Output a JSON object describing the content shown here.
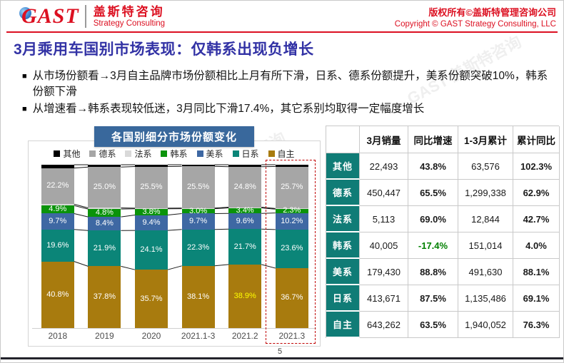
{
  "header": {
    "logo_text": "GAST",
    "logo_cn": "盖斯特咨询",
    "logo_en": "Strategy Consulting",
    "copyright_cn": "版权所有©盖斯特管理咨询公司",
    "copyright_en": "Copyright © GAST Strategy Consulting, LLC"
  },
  "title": "3月乘用车国别市场表现：仅韩系出现负增长",
  "bullets": [
    "从市场份额看→3月自主品牌市场份额相比上月有所下滑，日系、德系份额提升，美系份额突破10%，韩系份额下滑",
    "从增速看→韩系表现较低迷，3月同比下滑17.4%，其它系别均取得一定幅度增长"
  ],
  "chart_data": {
    "type": "bar",
    "stacked": true,
    "title": "各国别细分市场份额变化",
    "unit": "%",
    "ylim": [
      0,
      100
    ],
    "grid": false,
    "legend_position": "top",
    "categories": [
      "2018",
      "2019",
      "2020",
      "2021.1-3",
      "2021.2",
      "2021.3"
    ],
    "series": [
      {
        "name": "自主",
        "color": "#A87B0E",
        "values": [
          40.8,
          37.8,
          35.7,
          38.1,
          38.9,
          36.7
        ]
      },
      {
        "name": "日系",
        "color": "#0B8578",
        "values": [
          19.6,
          21.9,
          24.1,
          22.3,
          21.7,
          23.6
        ]
      },
      {
        "name": "美系",
        "color": "#3E68A3",
        "values": [
          9.7,
          8.4,
          9.4,
          9.7,
          9.6,
          10.2
        ]
      },
      {
        "name": "韩系",
        "color": "#0A930A",
        "values": [
          4.9,
          4.8,
          3.8,
          3.0,
          3.4,
          2.3
        ]
      },
      {
        "name": "法系",
        "color": "#D9D9D9",
        "values": [
          0.8,
          0.7,
          0.4,
          0.4,
          0.4,
          0.4
        ],
        "labels_hidden": true
      },
      {
        "name": "德系",
        "color": "#A6A6A6",
        "values": [
          22.2,
          25.0,
          25.5,
          25.5,
          24.8,
          25.7
        ]
      },
      {
        "name": "其他",
        "color": "#000000",
        "values": [
          2.0,
          1.4,
          1.1,
          1.0,
          1.2,
          1.1
        ],
        "labels_hidden": true
      }
    ],
    "legend_order": [
      "其他",
      "德系",
      "法系",
      "韩系",
      "美系",
      "日系",
      "自主"
    ],
    "highlight_category_index": 5,
    "highlight_label": {
      "category_index": 4,
      "series": "自主",
      "color": "#FFFF00"
    }
  },
  "table": {
    "columns": [
      "",
      "3月销量",
      "同比增速",
      "1-3月累计",
      "累计同比"
    ],
    "rows": [
      {
        "name": "其他",
        "sales": "22,493",
        "yoy": "43.8%",
        "cum": "63,576",
        "cum_yoy": "102.3%"
      },
      {
        "name": "德系",
        "sales": "450,447",
        "yoy": "65.5%",
        "cum": "1,299,338",
        "cum_yoy": "62.9%"
      },
      {
        "name": "法系",
        "sales": "5,113",
        "yoy": "69.0%",
        "cum": "12,844",
        "cum_yoy": "42.7%"
      },
      {
        "name": "韩系",
        "sales": "40,005",
        "yoy": "-17.4%",
        "cum": "151,014",
        "cum_yoy": "4.0%",
        "yoy_color": "#008000"
      },
      {
        "name": "美系",
        "sales": "179,430",
        "yoy": "88.8%",
        "cum": "491,630",
        "cum_yoy": "88.1%"
      },
      {
        "name": "日系",
        "sales": "413,671",
        "yoy": "87.5%",
        "cum": "1,135,486",
        "cum_yoy": "69.1%"
      },
      {
        "name": "自主",
        "sales": "643,262",
        "yoy": "63.5%",
        "cum": "1,940,052",
        "cum_yoy": "76.3%"
      }
    ]
  },
  "watermark": "GAST 盖斯特咨询",
  "page_number": "5",
  "colors": {
    "accent_red": "#DC1021",
    "title_blue": "#3232A5",
    "banner_blue": "#39689C",
    "table_teal": "#107C76",
    "dashed_red": "#C00000",
    "negative_green": "#008000",
    "yellow_label": "#FFFF00"
  }
}
